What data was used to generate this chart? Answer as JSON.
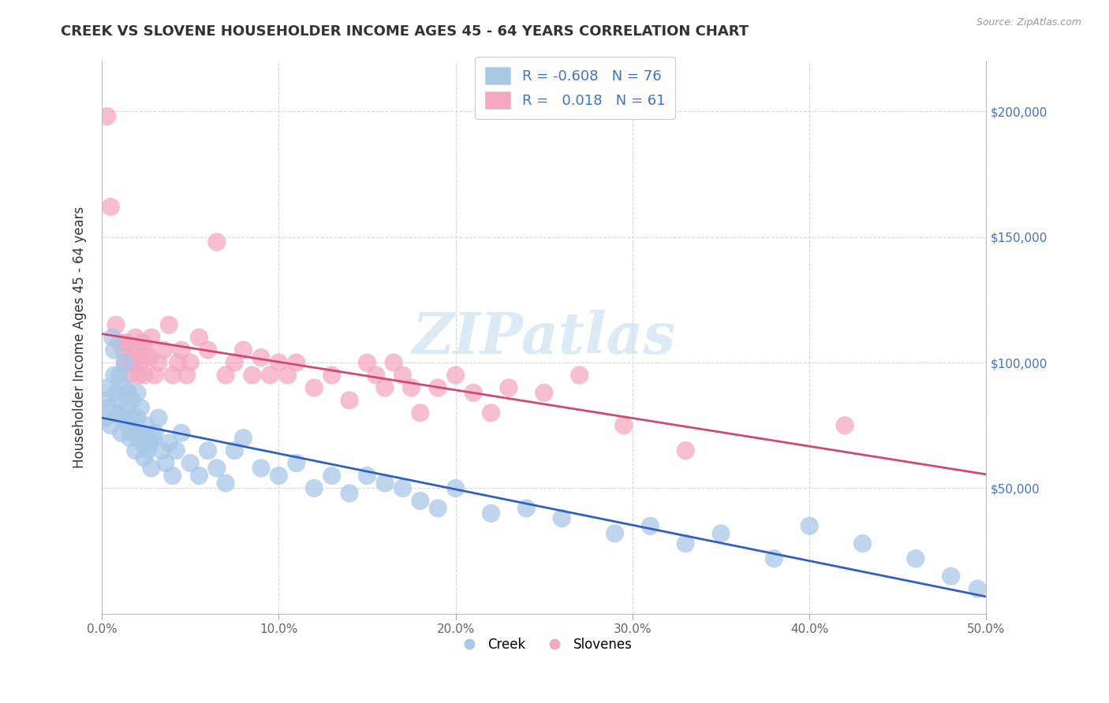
{
  "title": "CREEK VS SLOVENE HOUSEHOLDER INCOME AGES 45 - 64 YEARS CORRELATION CHART",
  "source": "Source: ZipAtlas.com",
  "ylabel": "Householder Income Ages 45 - 64 years",
  "xlim": [
    0.0,
    0.5
  ],
  "ylim": [
    0,
    220000
  ],
  "creek_color": "#a8c8e8",
  "creek_edge_color": "#a8c8e8",
  "slovene_color": "#f4a8c0",
  "slovene_edge_color": "#f4a8c0",
  "creek_line_color": "#3060c0",
  "slovene_line_color": "#d04878",
  "creek_R": -0.608,
  "creek_N": 76,
  "slovene_R": 0.018,
  "slovene_N": 61,
  "watermark": "ZIPatlas",
  "background_color": "#ffffff",
  "creek_scatter_x": [
    0.001,
    0.002,
    0.003,
    0.004,
    0.005,
    0.006,
    0.007,
    0.007,
    0.008,
    0.009,
    0.01,
    0.01,
    0.011,
    0.012,
    0.013,
    0.013,
    0.014,
    0.015,
    0.015,
    0.016,
    0.017,
    0.017,
    0.018,
    0.019,
    0.02,
    0.02,
    0.021,
    0.022,
    0.022,
    0.023,
    0.024,
    0.025,
    0.026,
    0.027,
    0.028,
    0.029,
    0.03,
    0.032,
    0.034,
    0.036,
    0.038,
    0.04,
    0.042,
    0.045,
    0.05,
    0.055,
    0.06,
    0.065,
    0.07,
    0.075,
    0.08,
    0.09,
    0.1,
    0.11,
    0.12,
    0.13,
    0.14,
    0.15,
    0.16,
    0.17,
    0.18,
    0.19,
    0.2,
    0.22,
    0.24,
    0.26,
    0.29,
    0.31,
    0.33,
    0.35,
    0.38,
    0.4,
    0.43,
    0.46,
    0.48,
    0.495
  ],
  "creek_scatter_y": [
    85000,
    78000,
    90000,
    82000,
    75000,
    110000,
    95000,
    105000,
    88000,
    80000,
    85000,
    95000,
    72000,
    78000,
    90000,
    100000,
    82000,
    75000,
    88000,
    70000,
    78000,
    85000,
    72000,
    65000,
    78000,
    88000,
    70000,
    72000,
    82000,
    68000,
    62000,
    75000,
    65000,
    68000,
    58000,
    70000,
    72000,
    78000,
    65000,
    60000,
    68000,
    55000,
    65000,
    72000,
    60000,
    55000,
    65000,
    58000,
    52000,
    65000,
    70000,
    58000,
    55000,
    60000,
    50000,
    55000,
    48000,
    55000,
    52000,
    50000,
    45000,
    42000,
    50000,
    40000,
    42000,
    38000,
    32000,
    35000,
    28000,
    32000,
    22000,
    35000,
    28000,
    22000,
    15000,
    10000
  ],
  "slovene_scatter_x": [
    0.003,
    0.005,
    0.008,
    0.01,
    0.012,
    0.013,
    0.014,
    0.015,
    0.016,
    0.017,
    0.018,
    0.019,
    0.02,
    0.021,
    0.022,
    0.023,
    0.024,
    0.025,
    0.027,
    0.028,
    0.03,
    0.032,
    0.035,
    0.038,
    0.04,
    0.043,
    0.045,
    0.048,
    0.05,
    0.055,
    0.06,
    0.065,
    0.07,
    0.075,
    0.08,
    0.085,
    0.09,
    0.095,
    0.1,
    0.105,
    0.11,
    0.12,
    0.13,
    0.14,
    0.15,
    0.155,
    0.16,
    0.165,
    0.17,
    0.175,
    0.18,
    0.19,
    0.2,
    0.21,
    0.22,
    0.23,
    0.25,
    0.27,
    0.295,
    0.33,
    0.42
  ],
  "slovene_scatter_y": [
    198000,
    162000,
    115000,
    108000,
    105000,
    100000,
    108000,
    100000,
    95000,
    102000,
    100000,
    110000,
    105000,
    95000,
    100000,
    108000,
    95000,
    105000,
    102000,
    110000,
    95000,
    100000,
    105000,
    115000,
    95000,
    100000,
    105000,
    95000,
    100000,
    110000,
    105000,
    148000,
    95000,
    100000,
    105000,
    95000,
    102000,
    95000,
    100000,
    95000,
    100000,
    90000,
    95000,
    85000,
    100000,
    95000,
    90000,
    100000,
    95000,
    90000,
    80000,
    90000,
    95000,
    88000,
    80000,
    90000,
    88000,
    95000,
    75000,
    65000,
    75000
  ]
}
